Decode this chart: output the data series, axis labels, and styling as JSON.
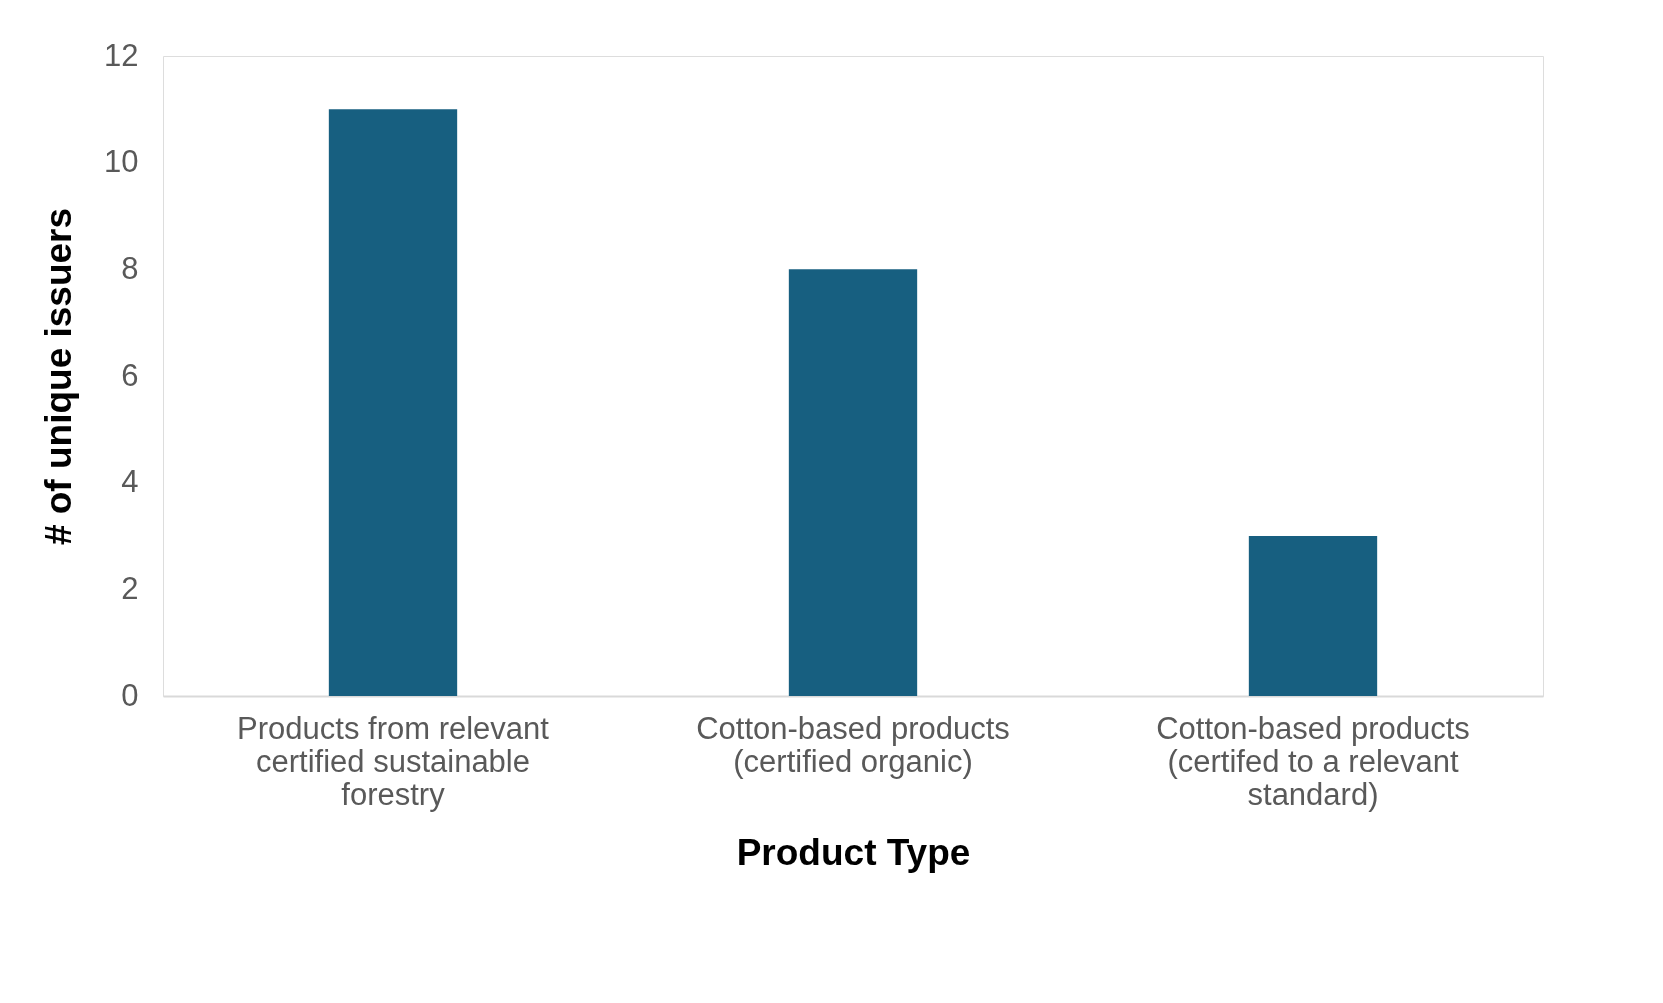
{
  "chart_data": {
    "type": "bar",
    "xlabel": "Product Type",
    "ylabel": "# of unique issuers",
    "categories": [
      "Products from relevant certified sustainable forestry",
      "Cotton-based products (certified organic)",
      "Cotton-based products (certifed to a relevant standard)"
    ],
    "values": [
      11,
      8,
      3
    ],
    "color": "#175f80",
    "ylim": [
      0,
      12
    ],
    "yticks": [
      0,
      2,
      4,
      6,
      8,
      10,
      12
    ],
    "grid": false
  }
}
